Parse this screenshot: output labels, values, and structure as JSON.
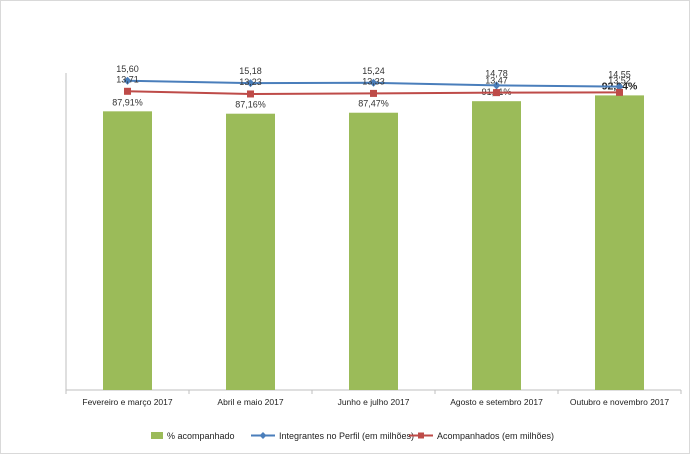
{
  "chart_data": {
    "type": "bar",
    "categories": [
      "Fevereiro e março 2017",
      "Abril e maio 2017",
      "Junho e julho 2017",
      "Agosto e setembro 2017",
      "Outubro e novembro 2017"
    ],
    "bars": {
      "name": "% acompanhado",
      "values": [
        87.91,
        87.16,
        87.47,
        91.11,
        92.94
      ],
      "labels": [
        "87,91%",
        "87,16%",
        "87,47%",
        "91,11%",
        "92,94%"
      ],
      "color": "#9bbb59",
      "highlight_last_label": true
    },
    "lines": [
      {
        "name": "Integrantes no Perfil (em milhões)",
        "values": [
          15.6,
          15.18,
          15.24,
          14.78,
          14.55
        ],
        "labels": [
          "15,60",
          "15,18",
          "15,24",
          "14,78",
          "14,55"
        ],
        "color": "#4a7ebb",
        "marker": "diamond"
      },
      {
        "name": "Acompanhados (em milhões)",
        "values": [
          13.71,
          13.23,
          13.33,
          13.47,
          13.52
        ],
        "labels": [
          "13,71",
          "13,23",
          "13,33",
          "13,47",
          "13,52"
        ],
        "color": "#be4b48",
        "marker": "square"
      }
    ],
    "bar_axis_range": [
      0,
      100
    ],
    "line_axis_range": [
      -40,
      17
    ],
    "grid": false,
    "legend_position": "bottom"
  }
}
